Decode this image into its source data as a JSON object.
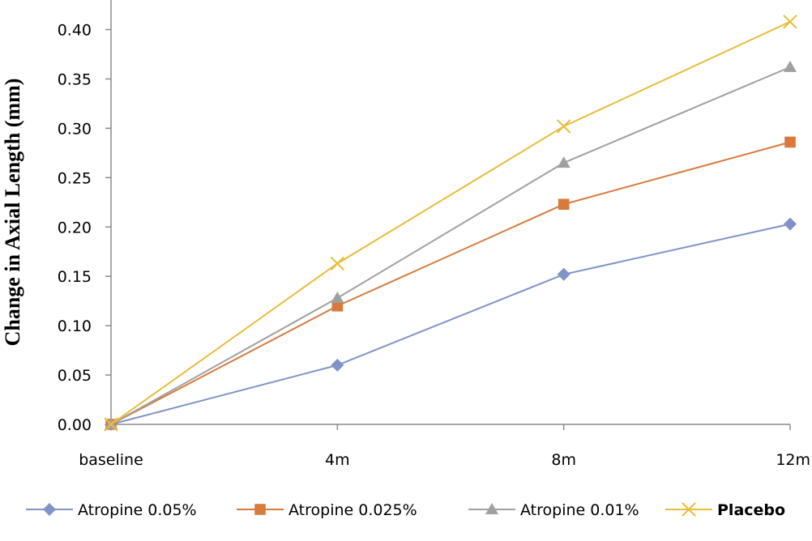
{
  "chart_data": {
    "type": "line",
    "title": "",
    "xlabel": "",
    "ylabel": "Change in Axial Length (mm)",
    "categories": [
      "baseline",
      "4m",
      "8m",
      "12m"
    ],
    "ylim": [
      0,
      0.43
    ],
    "yticks": [
      "0.00",
      "0.05",
      "0.10",
      "0.15",
      "0.20",
      "0.25",
      "0.30",
      "0.35",
      "0.40"
    ],
    "grid": false,
    "legend": "bottom",
    "series": [
      {
        "name": "Atropine 0.05%",
        "values": [
          0.0,
          0.06,
          0.152,
          0.203
        ],
        "color": "#7f93c9",
        "marker": "diamond"
      },
      {
        "name": "Atropine 0.025%",
        "values": [
          0.0,
          0.12,
          0.223,
          0.286
        ],
        "color": "#d87a3b",
        "marker": "square"
      },
      {
        "name": "Atropine 0.01%",
        "values": [
          0.0,
          0.128,
          0.265,
          0.362
        ],
        "color": "#a0a0a0",
        "marker": "triangle"
      },
      {
        "name": "Placebo",
        "values": [
          0.0,
          0.163,
          0.302,
          0.408
        ],
        "color": "#e8bd3a",
        "marker": "x"
      }
    ]
  }
}
